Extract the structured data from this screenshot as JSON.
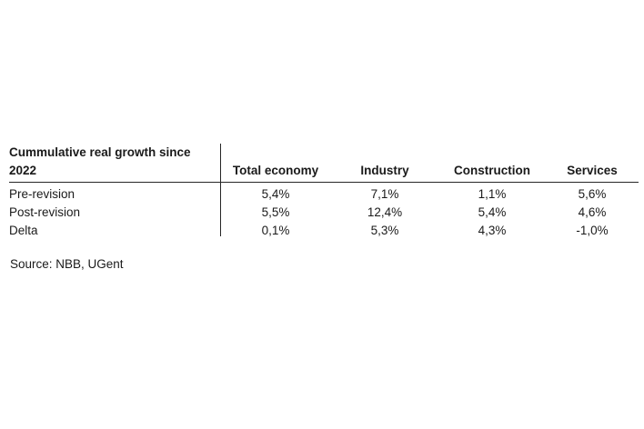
{
  "table": {
    "header": {
      "row_label_line1": "Cummulative real growth since",
      "row_label_line2": "2022",
      "columns": [
        "Total economy",
        "Industry",
        "Construction",
        "Services"
      ]
    },
    "rows": [
      {
        "label": "Pre-revision",
        "values": [
          "5,4%",
          "7,1%",
          "1,1%",
          "5,6%"
        ]
      },
      {
        "label": "Post-revision",
        "values": [
          "5,5%",
          "12,4%",
          "5,4%",
          "4,6%"
        ]
      },
      {
        "label": "Delta",
        "values": [
          "0,1%",
          "5,3%",
          "4,3%",
          "-1,0%"
        ]
      }
    ]
  },
  "source": "Source: NBB, UGent",
  "colors": {
    "text": "#1a1a1a",
    "rule": "#262626",
    "background": "#ffffff"
  },
  "chart_data": {
    "type": "table",
    "title": "Cummulative real growth since 2022",
    "categories": [
      "Total economy",
      "Industry",
      "Construction",
      "Services"
    ],
    "series": [
      {
        "name": "Pre-revision",
        "values": [
          5.4,
          7.1,
          1.1,
          5.6
        ]
      },
      {
        "name": "Post-revision",
        "values": [
          5.5,
          12.4,
          5.4,
          4.6
        ]
      },
      {
        "name": "Delta",
        "values": [
          0.1,
          5.3,
          4.3,
          -1.0
        ]
      }
    ],
    "unit": "%",
    "source": "NBB, UGent"
  }
}
